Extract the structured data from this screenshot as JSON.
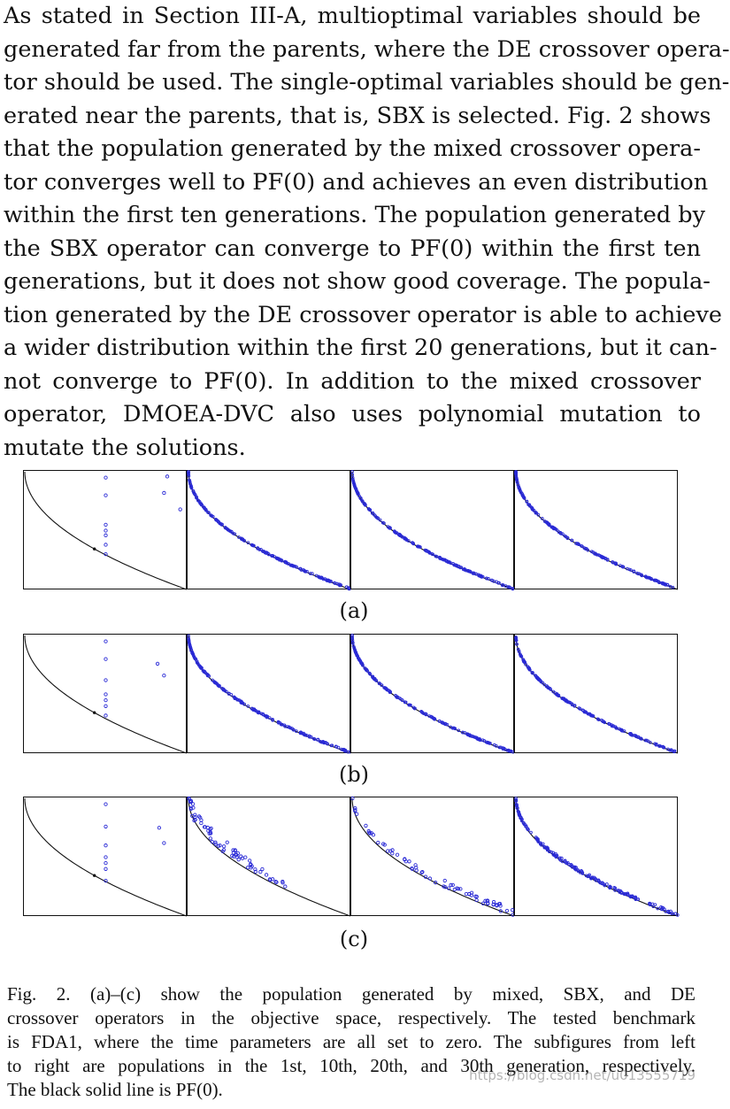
{
  "body_lines": [
    "As stated in Section III-A, multioptimal variables should be",
    "generated far from the parents, where the DE crossover opera-",
    "tor should be used. The single-optimal variables should be gen-",
    "erated near the parents, that is, SBX is selected. Fig. 2 shows",
    "that the population generated by the mixed crossover opera-",
    "tor converges well to PF(0) and achieves an even distribution",
    "within the first ten generations. The population generated by",
    "the SBX operator can converge to PF(0) within the first ten",
    "generations, but it does not show good coverage. The popula-",
    "tion generated by the DE crossover operator is able to achieve",
    "a wider distribution within the first 20 generations, but it can-",
    "not converge to PF(0). In addition to the mixed crossover",
    "operator, DMOEA-DVC also uses polynomial mutation to",
    "mutate the solutions."
  ],
  "figure": {
    "rows": [
      {
        "label": "(a)",
        "operator": "mixed",
        "spread": [
          0,
          0.015,
          0.015,
          0.015
        ]
      },
      {
        "label": "(b)",
        "operator": "SBX",
        "spread": [
          0,
          0.02,
          0.015,
          0.015
        ]
      },
      {
        "label": "(c)",
        "operator": "DE",
        "spread": [
          0,
          0.12,
          0.06,
          0.04
        ]
      }
    ],
    "generations": [
      "1st",
      "10th",
      "20th",
      "30th"
    ]
  },
  "chart_data": {
    "type": "scatter",
    "title": "",
    "xlabel": "",
    "ylabel": "",
    "grid": false,
    "front": "PF(0): f2 = 1 - sqrt(f1), f1 in [0, 1]",
    "xlim": [
      0,
      1
    ],
    "ylim": [
      0,
      1
    ],
    "panels": [
      {
        "row": "(a)",
        "col": "1st",
        "points": [
          [
            0.5,
            0.95
          ],
          [
            0.5,
            0.8
          ],
          [
            0.5,
            0.55
          ],
          [
            0.5,
            0.5
          ],
          [
            0.5,
            0.46
          ],
          [
            0.5,
            0.38
          ],
          [
            0.5,
            0.3
          ],
          [
            0.88,
            0.96
          ],
          [
            0.86,
            0.82
          ],
          [
            0.96,
            0.68
          ]
        ]
      },
      {
        "row": "(b)",
        "col": "1st",
        "points": [
          [
            0.5,
            0.95
          ],
          [
            0.5,
            0.8
          ],
          [
            0.5,
            0.62
          ],
          [
            0.5,
            0.5
          ],
          [
            0.5,
            0.45
          ],
          [
            0.5,
            0.4
          ],
          [
            0.5,
            0.32
          ],
          [
            0.82,
            0.76
          ],
          [
            0.86,
            0.66
          ]
        ]
      },
      {
        "row": "(c)",
        "col": "1st",
        "points": [
          [
            0.5,
            0.95
          ],
          [
            0.5,
            0.76
          ],
          [
            0.5,
            0.6
          ],
          [
            0.5,
            0.5
          ],
          [
            0.5,
            0.45
          ],
          [
            0.5,
            0.4
          ],
          [
            0.5,
            0.3
          ],
          [
            0.83,
            0.75
          ],
          [
            0.86,
            0.62
          ]
        ]
      }
    ]
  },
  "caption_lines": [
    "Fig. 2.    (a)–(c) show the population generated by mixed, SBX, and DE",
    "crossover operators in the objective space, respectively. The tested benchmark",
    "is FDA1, where the time parameters are all set to zero. The subfigures from left",
    "to right are populations in the 1st, 10th, 20th, and 30th generation, respectively.",
    "The black solid line is PF(0)."
  ],
  "watermark": "https://blog.csdn.net/u013555719"
}
